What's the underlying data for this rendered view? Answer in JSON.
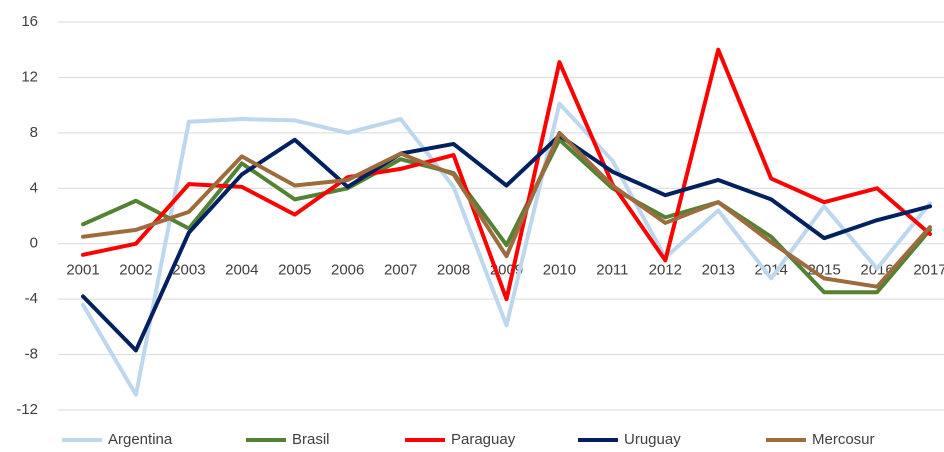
{
  "chart_data": {
    "type": "line",
    "categories": [
      "2001",
      "2002",
      "2003",
      "2004",
      "2005",
      "2006",
      "2007",
      "2008",
      "2009",
      "2010",
      "2011",
      "2012",
      "2013",
      "2014",
      "2015",
      "2016",
      "2017"
    ],
    "series": [
      {
        "name": "Argentina",
        "color": "#bdd7ee",
        "values": [
          -4.4,
          -10.9,
          8.8,
          9.0,
          8.9,
          8.0,
          9.0,
          4.1,
          -5.9,
          10.1,
          6.0,
          -1.0,
          2.4,
          -2.5,
          2.7,
          -1.8,
          2.9
        ]
      },
      {
        "name": "Brasil",
        "color": "#548235",
        "values": [
          1.4,
          3.1,
          1.1,
          5.8,
          3.2,
          4.0,
          6.1,
          5.1,
          -0.1,
          7.5,
          4.0,
          1.9,
          3.0,
          0.5,
          -3.5,
          -3.5,
          1.0
        ]
      },
      {
        "name": "Paraguay",
        "color": "#ff0000",
        "values": [
          -0.8,
          0.0,
          4.3,
          4.1,
          2.1,
          4.8,
          5.4,
          6.4,
          -4.0,
          13.1,
          4.3,
          -1.2,
          14.0,
          4.7,
          3.0,
          4.0,
          0.7
        ]
      },
      {
        "name": "Uruguay",
        "color": "#002060",
        "values": [
          -3.8,
          -7.7,
          0.8,
          5.0,
          7.5,
          4.1,
          6.5,
          7.2,
          4.2,
          7.8,
          5.2,
          3.5,
          4.6,
          3.2,
          0.4,
          1.7,
          2.7
        ]
      },
      {
        "name": "Mercosur",
        "color": "#9e6b3d",
        "values": [
          0.5,
          1.0,
          2.3,
          6.3,
          4.2,
          4.6,
          6.5,
          5.0,
          -0.9,
          8.0,
          4.2,
          1.5,
          3.0,
          0.1,
          -2.5,
          -3.1,
          1.2
        ]
      }
    ],
    "ylim": [
      -12,
      16
    ],
    "yticks": [
      -12,
      -8,
      -4,
      0,
      4,
      8,
      12,
      16
    ],
    "grid": true,
    "legend": "bottom"
  }
}
